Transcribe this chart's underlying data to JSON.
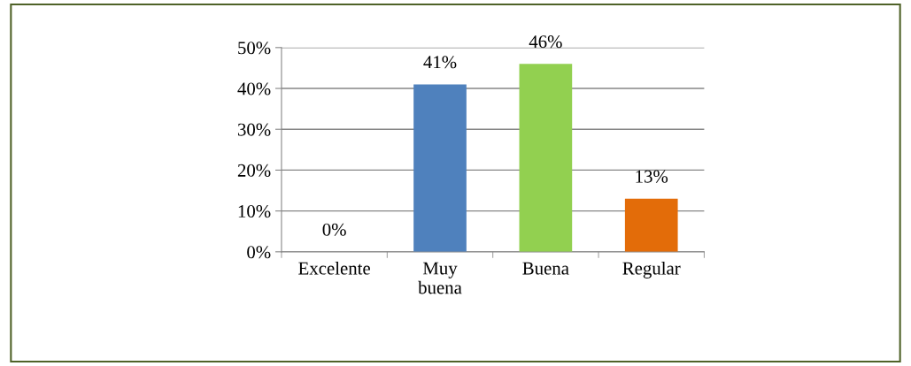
{
  "chart_data": {
    "type": "bar",
    "categories": [
      "Excelente",
      "Muy\nbuena",
      "Buena",
      "Regular"
    ],
    "values": [
      0,
      41,
      46,
      13
    ],
    "colors": [
      "#4f81bd",
      "#4f81bd",
      "#92d050",
      "#e36c09"
    ],
    "value_labels": [
      "0%",
      "41%",
      "46%",
      "13%"
    ],
    "ylim": [
      0,
      50
    ],
    "yticks": [
      {
        "value": 0,
        "label": "0%"
      },
      {
        "value": 10,
        "label": "10%"
      },
      {
        "value": 20,
        "label": "20%"
      },
      {
        "value": 30,
        "label": "30%"
      },
      {
        "value": 40,
        "label": "40%"
      },
      {
        "value": 50,
        "label": "50%"
      }
    ],
    "grid": "y",
    "legend": false
  }
}
